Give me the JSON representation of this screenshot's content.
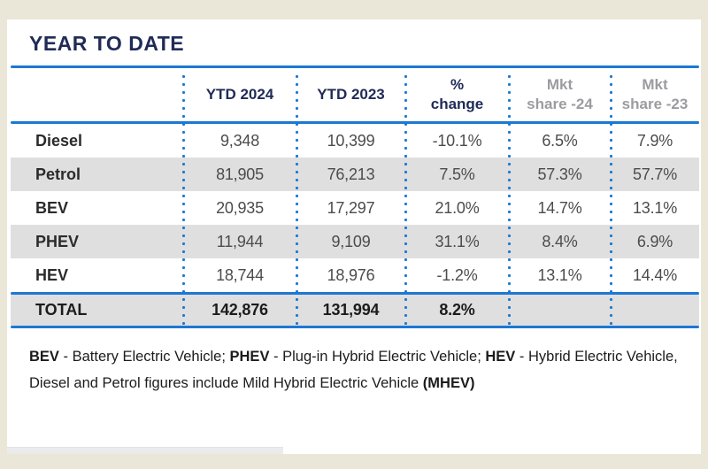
{
  "title": "YEAR TO DATE",
  "colors": {
    "accent_blue": "#1C78D3",
    "navy_text": "#202B57",
    "stripe_gray": "#DFDFDF",
    "muted_header_gray": "#9C9CA0",
    "page_background": "#EBE7D8"
  },
  "table": {
    "columns": [
      {
        "line1": "",
        "line2": ""
      },
      {
        "line1": "YTD 2024",
        "line2": ""
      },
      {
        "line1": "YTD 2023",
        "line2": ""
      },
      {
        "line1": "%",
        "line2": "change"
      },
      {
        "line1": "Mkt",
        "line2": "share -24"
      },
      {
        "line1": "Mkt",
        "line2": "share -23"
      }
    ],
    "rows": [
      {
        "label": "Diesel",
        "ytd_2024": "9,348",
        "ytd_2023": "10,399",
        "pct_change": "-10.1%",
        "mkt_share_24": "6.5%",
        "mkt_share_23": "7.9%"
      },
      {
        "label": "Petrol",
        "ytd_2024": "81,905",
        "ytd_2023": "76,213",
        "pct_change": "7.5%",
        "mkt_share_24": "57.3%",
        "mkt_share_23": "57.7%"
      },
      {
        "label": "BEV",
        "ytd_2024": "20,935",
        "ytd_2023": "17,297",
        "pct_change": "21.0%",
        "mkt_share_24": "14.7%",
        "mkt_share_23": "13.1%"
      },
      {
        "label": "PHEV",
        "ytd_2024": "11,944",
        "ytd_2023": "9,109",
        "pct_change": "31.1%",
        "mkt_share_24": "8.4%",
        "mkt_share_23": "6.9%"
      },
      {
        "label": "HEV",
        "ytd_2024": "18,744",
        "ytd_2023": "18,976",
        "pct_change": "-1.2%",
        "mkt_share_24": "13.1%",
        "mkt_share_23": "14.4%"
      }
    ],
    "total": {
      "label": "TOTAL",
      "ytd_2024": "142,876",
      "ytd_2023": "131,994",
      "pct_change": "8.2%",
      "mkt_share_24": "",
      "mkt_share_23": ""
    }
  },
  "footnote": {
    "l1_bev": "BEV",
    "l1_bev_def": " - Battery Electric Vehicle; ",
    "l1_phev": "PHEV",
    "l1_phev_def": " - Plug-in Hybrid Electric Vehicle; ",
    "l1_hev": "HEV",
    "l1_hev_def": " - Hybrid Electric Vehicle,",
    "l2_text": "Diesel and Petrol figures include Mild Hybrid Electric Vehicle ",
    "l2_mhev": "(MHEV)"
  },
  "chart_data": {
    "type": "table",
    "title": "YEAR TO DATE",
    "columns": [
      "",
      "YTD 2024",
      "YTD 2023",
      "% change",
      "Mkt share -24",
      "Mkt share -23"
    ],
    "rows": [
      [
        "Diesel",
        9348,
        10399,
        "-10.1%",
        "6.5%",
        "7.9%"
      ],
      [
        "Petrol",
        81905,
        76213,
        "7.5%",
        "57.3%",
        "57.7%"
      ],
      [
        "BEV",
        20935,
        17297,
        "21.0%",
        "14.7%",
        "13.1%"
      ],
      [
        "PHEV",
        11944,
        9109,
        "31.1%",
        "8.4%",
        "6.9%"
      ],
      [
        "HEV",
        18744,
        18976,
        "-1.2%",
        "13.1%",
        "14.4%"
      ],
      [
        "TOTAL",
        142876,
        131994,
        "8.2%",
        "",
        ""
      ]
    ],
    "notes": "BEV - Battery Electric Vehicle; PHEV - Plug-in Hybrid Electric Vehicle; HEV - Hybrid Electric Vehicle, Diesel and Petrol figures include Mild Hybrid Electric Vehicle (MHEV)"
  }
}
